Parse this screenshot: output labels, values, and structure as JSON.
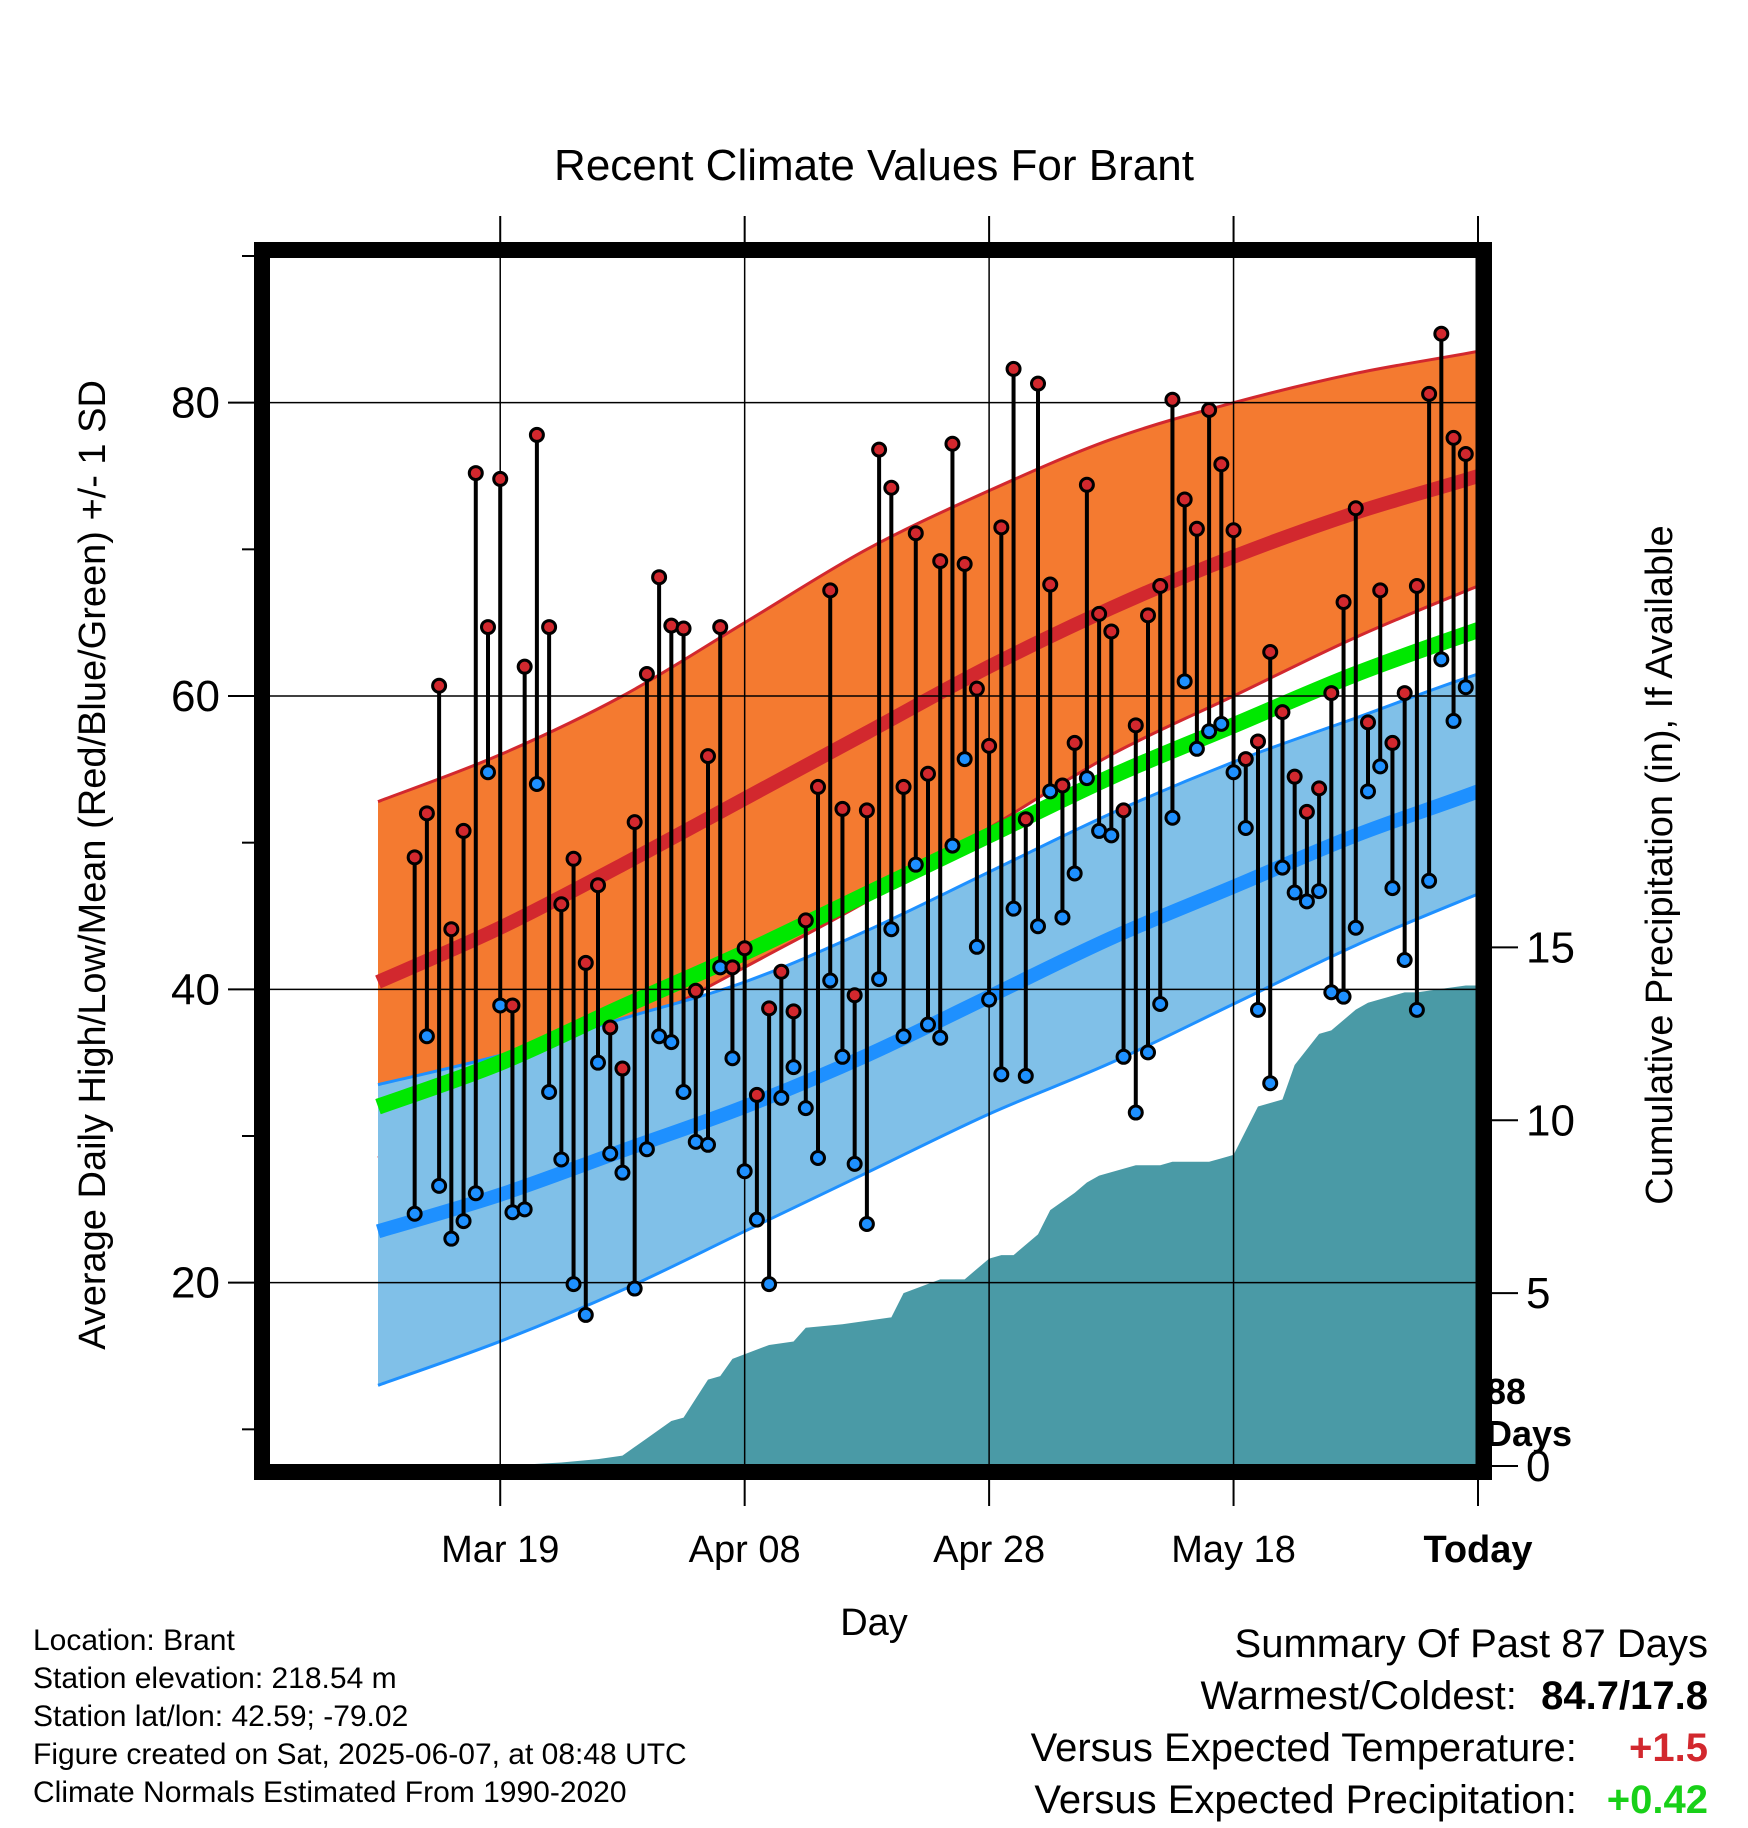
{
  "chart_data": {
    "type": "line",
    "title": "Recent Climate Values For Brant",
    "xlabel": "Day",
    "ylabel": "Average Daily High/Low/Mean (Red/Blue/Green) +/- 1 SD",
    "y2label": "Cumulative Precipitation (in), If Available",
    "ylim": [
      7.5,
      90
    ],
    "y_ticks": [
      "20",
      "40",
      "60",
      "80"
    ],
    "y2lim": [
      0,
      35
    ],
    "y2_ticks": [
      "0",
      "5",
      "10",
      "15"
    ],
    "xlim": [
      -99,
      0
    ],
    "x_ticks": [
      {
        "day": -80,
        "label": "Mar 19"
      },
      {
        "day": -60,
        "label": "Apr 08"
      },
      {
        "day": -40,
        "label": "Apr 28"
      },
      {
        "day": -20,
        "label": "May 18"
      },
      {
        "day": 0,
        "label": "Today"
      }
    ],
    "today_marker": {
      "day": 0,
      "label_line1": "88",
      "label_line2": "Days"
    },
    "grid": true,
    "normals": {
      "days": [
        -90,
        -80,
        -70,
        -60,
        -50,
        -40,
        -30,
        -20,
        -10,
        0,
        9
      ],
      "high_mean": [
        40.5,
        44.2,
        48.5,
        53.0,
        57.5,
        62.0,
        66.0,
        69.5,
        72.5,
        75.0,
        77.5
      ],
      "high_upper": [
        52.8,
        56.0,
        60.0,
        65.0,
        70.0,
        74.0,
        77.5,
        80.0,
        82.0,
        83.5,
        85.0
      ],
      "high_lower": [
        28.5,
        32.3,
        37.0,
        41.5,
        46.0,
        51.0,
        56.0,
        60.0,
        64.0,
        67.5,
        70.5
      ],
      "low_mean": [
        23.5,
        26.0,
        29.0,
        32.0,
        35.5,
        39.5,
        43.5,
        47.0,
        50.5,
        53.5,
        56.5
      ],
      "low_upper": [
        33.5,
        35.5,
        38.0,
        40.5,
        44.0,
        48.0,
        52.0,
        55.5,
        58.5,
        61.5,
        63.5
      ],
      "low_lower": [
        13.0,
        16.0,
        19.5,
        23.5,
        27.5,
        31.5,
        35.0,
        39.0,
        43.0,
        46.5,
        49.5
      ],
      "mean": [
        32.0,
        35.0,
        38.8,
        42.5,
        46.5,
        50.5,
        54.5,
        58.0,
        61.5,
        64.5,
        67.0
      ]
    },
    "series": [
      {
        "name": "Daily High",
        "values": [
          49.0,
          52.0,
          60.7,
          44.1,
          50.8,
          75.2,
          64.7,
          74.8,
          38.9,
          62.0,
          77.8,
          64.7,
          45.8,
          48.9,
          41.8,
          47.1,
          37.4,
          34.6,
          51.4,
          61.5,
          68.1,
          64.8,
          64.6,
          39.9,
          55.9,
          64.7,
          41.5,
          42.8,
          32.8,
          38.7,
          41.2,
          38.5,
          44.7,
          53.8,
          67.2,
          52.3,
          39.6,
          52.2,
          76.8,
          74.2,
          53.8,
          71.1,
          54.7,
          69.2,
          77.2,
          69.0,
          60.5,
          56.6,
          71.5,
          82.3,
          51.6,
          81.3,
          67.6,
          53.9,
          56.8,
          74.4,
          65.6,
          64.4,
          52.2,
          58.0,
          65.5,
          67.5,
          80.2,
          73.4,
          71.4,
          79.5,
          75.8,
          71.3,
          55.7,
          56.9,
          63.0,
          58.9,
          54.5,
          52.1,
          53.7,
          60.2,
          66.4,
          72.8,
          58.2,
          67.2,
          56.8,
          60.2,
          67.5,
          80.6,
          84.7,
          77.6,
          76.5
        ]
      },
      {
        "name": "Daily Low",
        "values": [
          24.7,
          36.8,
          26.6,
          23.0,
          24.2,
          26.1,
          54.8,
          38.9,
          24.8,
          25.0,
          54.0,
          33.0,
          28.4,
          19.9,
          17.8,
          35.0,
          28.8,
          27.5,
          19.6,
          29.1,
          36.8,
          36.4,
          33.0,
          29.6,
          29.4,
          41.5,
          35.3,
          27.6,
          24.3,
          19.9,
          32.6,
          34.7,
          31.9,
          28.5,
          40.6,
          35.4,
          28.1,
          24.0,
          40.7,
          44.1,
          36.8,
          48.5,
          37.6,
          36.7,
          49.8,
          55.7,
          42.9,
          39.3,
          34.2,
          45.5,
          34.1,
          44.3,
          53.5,
          44.9,
          47.9,
          54.4,
          50.8,
          50.5,
          35.4,
          31.6,
          35.7,
          39.0,
          51.7,
          61.0,
          56.4,
          57.6,
          58.1,
          54.8,
          51.0,
          38.6,
          33.6,
          48.3,
          46.6,
          46.0,
          46.7,
          39.8,
          39.5,
          44.2,
          53.5,
          55.2,
          46.9,
          42.0,
          38.6,
          47.4,
          62.5,
          58.3,
          60.6
        ]
      },
      {
        "name": "Cumulative Precipitation",
        "days": [
          -99,
          -85,
          -80,
          -75,
          -72,
          -70,
          -68,
          -66,
          -65,
          -63,
          -62,
          -61,
          -58,
          -56,
          -55,
          -52,
          -48,
          -47,
          -44,
          -42,
          -40,
          -39,
          -38,
          -36,
          -35,
          -33,
          -32,
          -31,
          -28,
          -26,
          -25,
          -22,
          -21,
          -20,
          -18,
          -17,
          -16,
          -15,
          -13,
          -12,
          -10,
          -9,
          -8,
          -6,
          -5,
          -3,
          -1,
          0,
          9
        ],
        "values": [
          0,
          0,
          0,
          0.1,
          0.2,
          0.3,
          0.8,
          1.3,
          1.4,
          2.5,
          2.6,
          3.1,
          3.5,
          3.6,
          4.0,
          4.1,
          4.3,
          5.0,
          5.4,
          5.4,
          6.0,
          6.1,
          6.1,
          6.7,
          7.4,
          7.9,
          8.2,
          8.4,
          8.7,
          8.7,
          8.8,
          8.8,
          8.9,
          9.0,
          10.4,
          10.5,
          10.6,
          11.6,
          12.5,
          12.6,
          13.2,
          13.4,
          13.5,
          13.7,
          13.7,
          13.8,
          13.9,
          13.9,
          13.9
        ]
      }
    ]
  },
  "footer": {
    "location": "Location: Brant",
    "elevation": "Station elevation: 218.54 m",
    "latlon": "Station lat/lon: 42.59; -79.02",
    "created": "Figure created on Sat, 2025-06-07, at 08:48 UTC",
    "normals": "Climate Normals Estimated From 1990-2020"
  },
  "summary": {
    "title": "Summary Of Past 87 Days",
    "warm_cold_label": "Warmest/Coldest:",
    "warm_cold_value": "84.7/17.8",
    "temp_label": "Versus Expected Temperature:",
    "temp_value": "+1.5",
    "precip_label": "Versus Expected Precipitation:",
    "precip_value": "+0.42"
  },
  "colors": {
    "high_band": "#f47a30",
    "high_line": "#d2282e",
    "low_band": "#80c0e8",
    "low_line": "#1e90ff",
    "mean_line": "#00e800",
    "precip": "#4a9aa6",
    "dot_high": "#d2282e",
    "dot_low": "#1e90ff"
  }
}
